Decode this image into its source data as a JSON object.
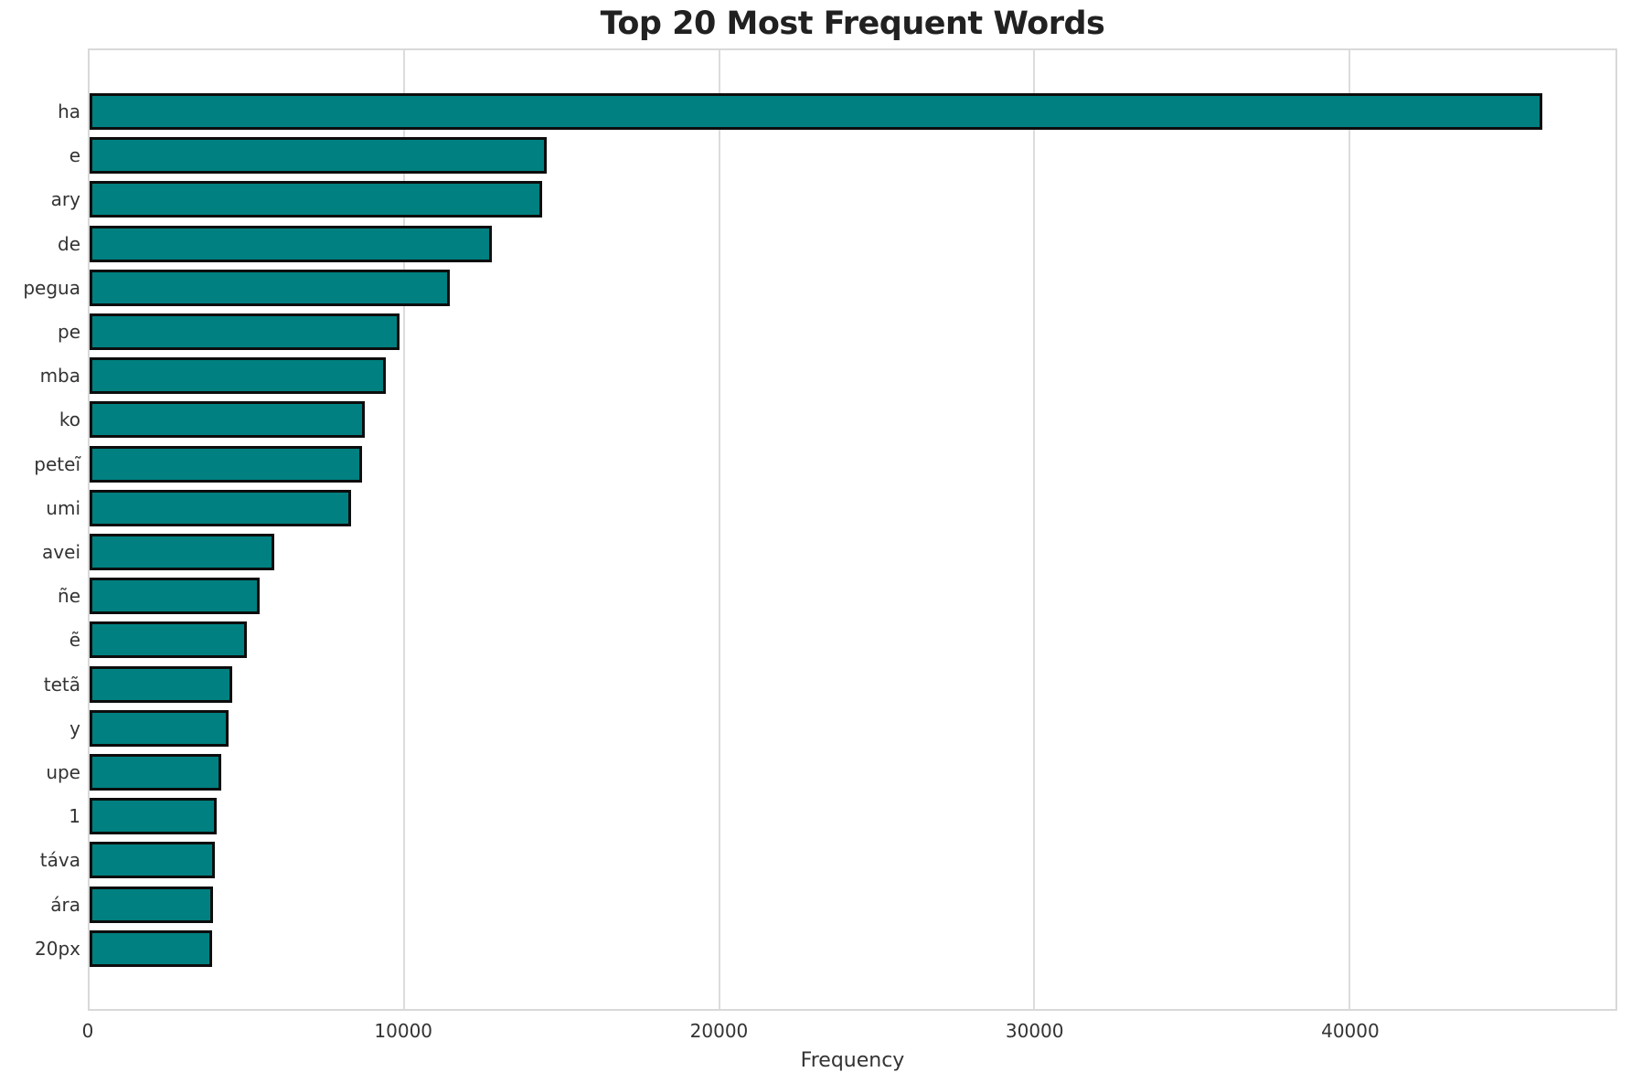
{
  "chart_data": {
    "type": "bar",
    "orientation": "horizontal",
    "title": "Top 20 Most Frequent Words",
    "xlabel": "Frequency",
    "ylabel": "",
    "categories": [
      "ha",
      "e",
      "ary",
      "de",
      "pegua",
      "pe",
      "mba",
      "ko",
      "peteĩ",
      "umi",
      "avei",
      "ñe",
      "ẽ",
      "tetã",
      "y",
      "upe",
      "1",
      "táva",
      "ára",
      "20px"
    ],
    "values": [
      46150,
      14520,
      14380,
      12770,
      11440,
      9850,
      9400,
      8750,
      8660,
      8290,
      5860,
      5390,
      4980,
      4530,
      4420,
      4180,
      4050,
      3980,
      3930,
      3890
    ],
    "xlim": [
      0,
      48460
    ],
    "xticks": [
      0,
      10000,
      20000,
      30000,
      40000
    ],
    "grid": "vertical",
    "legend": "none",
    "colors": {
      "bar_fill": "#008080",
      "bar_edge": "#0d0d0d",
      "grid_line": "#dcdcdc",
      "title_text": "#212121",
      "tick_text": "#333333",
      "background": "#ffffff"
    }
  }
}
